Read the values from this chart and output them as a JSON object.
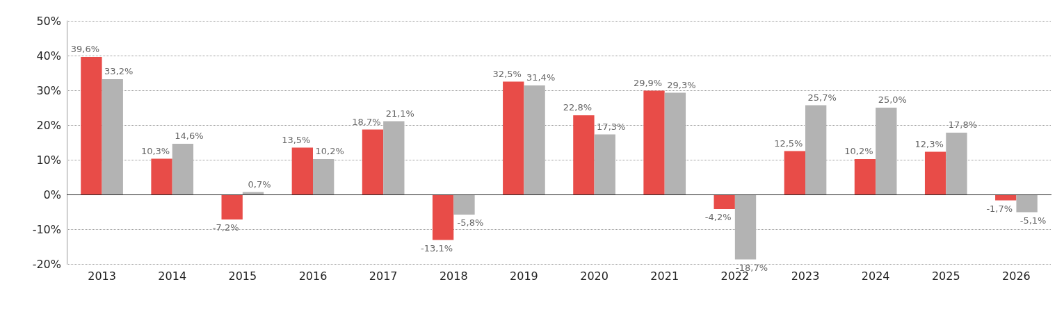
{
  "chart_data": {
    "type": "bar",
    "categories": [
      "2013",
      "2014",
      "2015",
      "2016",
      "2017",
      "2018",
      "2019",
      "2020",
      "2021",
      "2022",
      "2023",
      "2024",
      "2025",
      "2026"
    ],
    "series": [
      {
        "color": "#e84c48",
        "values": [
          39.6,
          10.3,
          -7.2,
          13.5,
          18.7,
          -13.1,
          32.5,
          22.8,
          29.9,
          -4.2,
          12.5,
          10.2,
          12.3,
          -1.7
        ],
        "value_labels": [
          "39,6%",
          "10,3%",
          "-7,2%",
          "13,5%",
          "18,7%",
          "-13,1%",
          "32,5%",
          "22,8%",
          "29,9%",
          "-4,2%",
          "12,5%",
          "10,2%",
          "12,3%",
          "-1,7%"
        ]
      },
      {
        "color": "#b3b3b3",
        "values": [
          33.2,
          14.6,
          0.7,
          10.2,
          21.1,
          -5.8,
          31.4,
          17.3,
          29.3,
          -18.7,
          25.7,
          25.0,
          17.8,
          -5.1
        ],
        "value_labels": [
          "33,2%",
          "14,6%",
          "0,7%",
          "10,2%",
          "21,1%",
          "-5,8%",
          "31,4%",
          "17,3%",
          "29,3%",
          "-18,7%",
          "25,7%",
          "25,0%",
          "17,8%",
          "-5,1%"
        ]
      }
    ],
    "ylim": [
      -20,
      50
    ],
    "yticks": [
      {
        "value": -20,
        "label": "-20%"
      },
      {
        "value": -10,
        "label": "-10%"
      },
      {
        "value": 0,
        "label": "0%"
      },
      {
        "value": 10,
        "label": "10%"
      },
      {
        "value": 20,
        "label": "20%"
      },
      {
        "value": 30,
        "label": "30%"
      },
      {
        "value": 40,
        "label": "40%"
      },
      {
        "value": 50,
        "label": "50%"
      }
    ],
    "grid": "y"
  }
}
